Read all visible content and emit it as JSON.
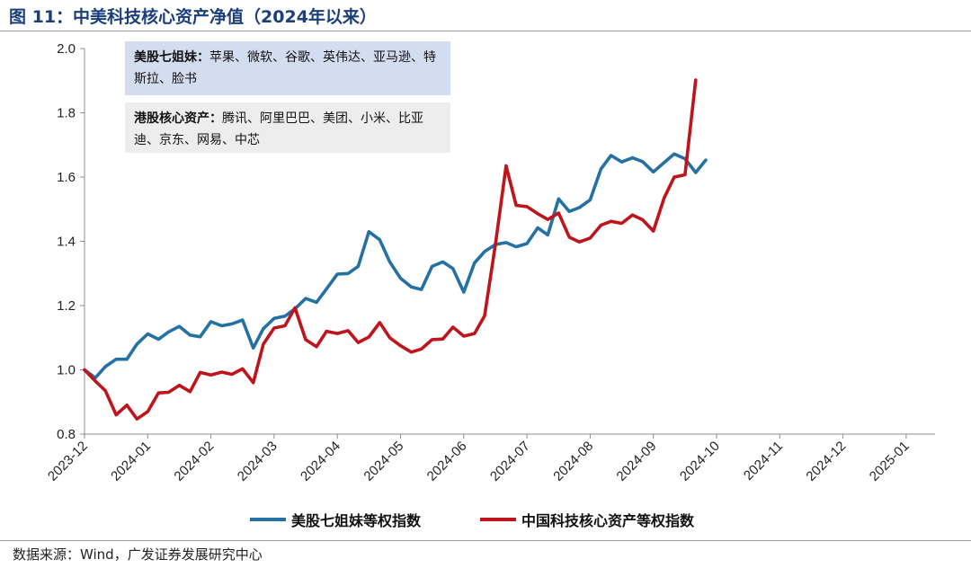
{
  "title": "图 11：中美科技核心资产净值（2024年以来）",
  "source": "数据来源：Wind，广发证券发展研究中心",
  "colors": {
    "us": "#2471a3",
    "cn": "#c0141c",
    "axis": "#8c8c8c"
  },
  "annotations": {
    "us": {
      "heading": "美股七姐妹：",
      "text": "苹果、微软、谷歌、英伟达、亚马逊、特斯拉、脸书"
    },
    "hk": {
      "heading": "港股核心资产：",
      "text": "腾讯、阿里巴巴、美团、小米、比亚迪、京东、网易、中芯"
    }
  },
  "chart_data": {
    "type": "line",
    "title": "中美科技核心资产净值（2024年以来）",
    "xlabel": "",
    "ylabel": "",
    "x_ticks": [
      "2023-12",
      "2024-01",
      "2024-02",
      "2024-03",
      "2024-04",
      "2024-05",
      "2024-06",
      "2024-07",
      "2024-08",
      "2024-09",
      "2024-10",
      "2024-11",
      "2024-12",
      "2025-01"
    ],
    "x_range": [
      0,
      13.5
    ],
    "ylim": [
      0.8,
      2.0
    ],
    "y_ticks": [
      0.8,
      1.0,
      1.2,
      1.4,
      1.6,
      1.8,
      2.0
    ],
    "y_tick_labels": [
      "0.8",
      "1.0",
      "1.2",
      "1.4",
      "1.6",
      "1.8",
      "2.0"
    ],
    "grid": false,
    "legend_position": "bottom",
    "series": [
      {
        "name": "美股七姐妹等权指数",
        "points": [
          [
            0.0,
            1.0
          ],
          [
            0.17,
            0.975
          ],
          [
            0.33,
            1.01
          ],
          [
            0.5,
            1.033
          ],
          [
            0.67,
            1.033
          ],
          [
            0.83,
            1.08
          ],
          [
            1.0,
            1.112
          ],
          [
            1.17,
            1.095
          ],
          [
            1.33,
            1.118
          ],
          [
            1.5,
            1.135
          ],
          [
            1.67,
            1.108
          ],
          [
            1.83,
            1.103
          ],
          [
            2.0,
            1.15
          ],
          [
            2.17,
            1.137
          ],
          [
            2.33,
            1.143
          ],
          [
            2.5,
            1.155
          ],
          [
            2.67,
            1.068
          ],
          [
            2.83,
            1.128
          ],
          [
            3.0,
            1.16
          ],
          [
            3.17,
            1.167
          ],
          [
            3.33,
            1.19
          ],
          [
            3.5,
            1.222
          ],
          [
            3.67,
            1.21
          ],
          [
            3.83,
            1.252
          ],
          [
            4.0,
            1.298
          ],
          [
            4.17,
            1.3
          ],
          [
            4.33,
            1.322
          ],
          [
            4.5,
            1.43
          ],
          [
            4.67,
            1.405
          ],
          [
            4.83,
            1.336
          ],
          [
            5.0,
            1.285
          ],
          [
            5.17,
            1.258
          ],
          [
            5.33,
            1.25
          ],
          [
            5.5,
            1.322
          ],
          [
            5.67,
            1.336
          ],
          [
            5.83,
            1.315
          ],
          [
            6.0,
            1.242
          ],
          [
            6.17,
            1.333
          ],
          [
            6.33,
            1.368
          ],
          [
            6.5,
            1.39
          ],
          [
            6.67,
            1.396
          ],
          [
            6.83,
            1.383
          ],
          [
            7.0,
            1.393
          ],
          [
            7.17,
            1.442
          ],
          [
            7.33,
            1.42
          ],
          [
            7.5,
            1.532
          ],
          [
            7.67,
            1.493
          ],
          [
            7.83,
            1.505
          ],
          [
            8.0,
            1.529
          ],
          [
            8.17,
            1.625
          ],
          [
            8.33,
            1.667
          ],
          [
            8.5,
            1.647
          ],
          [
            8.67,
            1.66
          ],
          [
            8.83,
            1.648
          ],
          [
            9.0,
            1.616
          ],
          [
            9.17,
            1.645
          ],
          [
            9.33,
            1.672
          ],
          [
            9.5,
            1.657
          ],
          [
            9.67,
            1.614
          ],
          [
            9.83,
            1.653
          ]
        ]
      },
      {
        "name": "中国科技核心资产等权指数",
        "points": [
          [
            0.0,
            1.0
          ],
          [
            0.17,
            0.965
          ],
          [
            0.33,
            0.935
          ],
          [
            0.5,
            0.86
          ],
          [
            0.67,
            0.89
          ],
          [
            0.83,
            0.847
          ],
          [
            1.0,
            0.87
          ],
          [
            1.17,
            0.928
          ],
          [
            1.33,
            0.93
          ],
          [
            1.5,
            0.952
          ],
          [
            1.67,
            0.932
          ],
          [
            1.83,
            0.992
          ],
          [
            2.0,
            0.984
          ],
          [
            2.17,
            0.993
          ],
          [
            2.33,
            0.986
          ],
          [
            2.5,
            1.003
          ],
          [
            2.67,
            0.96
          ],
          [
            2.83,
            1.08
          ],
          [
            3.0,
            1.13
          ],
          [
            3.17,
            1.137
          ],
          [
            3.33,
            1.193
          ],
          [
            3.5,
            1.094
          ],
          [
            3.67,
            1.072
          ],
          [
            3.83,
            1.12
          ],
          [
            4.0,
            1.113
          ],
          [
            4.17,
            1.122
          ],
          [
            4.33,
            1.085
          ],
          [
            4.5,
            1.102
          ],
          [
            4.67,
            1.147
          ],
          [
            4.83,
            1.1
          ],
          [
            5.0,
            1.075
          ],
          [
            5.17,
            1.055
          ],
          [
            5.33,
            1.065
          ],
          [
            5.5,
            1.094
          ],
          [
            5.67,
            1.096
          ],
          [
            5.83,
            1.133
          ],
          [
            6.0,
            1.105
          ],
          [
            6.17,
            1.113
          ],
          [
            6.33,
            1.168
          ],
          [
            6.5,
            1.39
          ],
          [
            6.67,
            1.635
          ],
          [
            6.83,
            1.512
          ],
          [
            7.0,
            1.508
          ],
          [
            7.17,
            1.486
          ],
          [
            7.33,
            1.468
          ],
          [
            7.5,
            1.488
          ],
          [
            7.67,
            1.413
          ],
          [
            7.83,
            1.398
          ],
          [
            8.0,
            1.41
          ],
          [
            8.17,
            1.45
          ],
          [
            8.33,
            1.462
          ],
          [
            8.5,
            1.456
          ],
          [
            8.67,
            1.482
          ],
          [
            8.83,
            1.467
          ],
          [
            9.0,
            1.432
          ],
          [
            9.17,
            1.535
          ],
          [
            9.33,
            1.6
          ],
          [
            9.5,
            1.607
          ],
          [
            9.67,
            1.902
          ]
        ]
      }
    ]
  }
}
